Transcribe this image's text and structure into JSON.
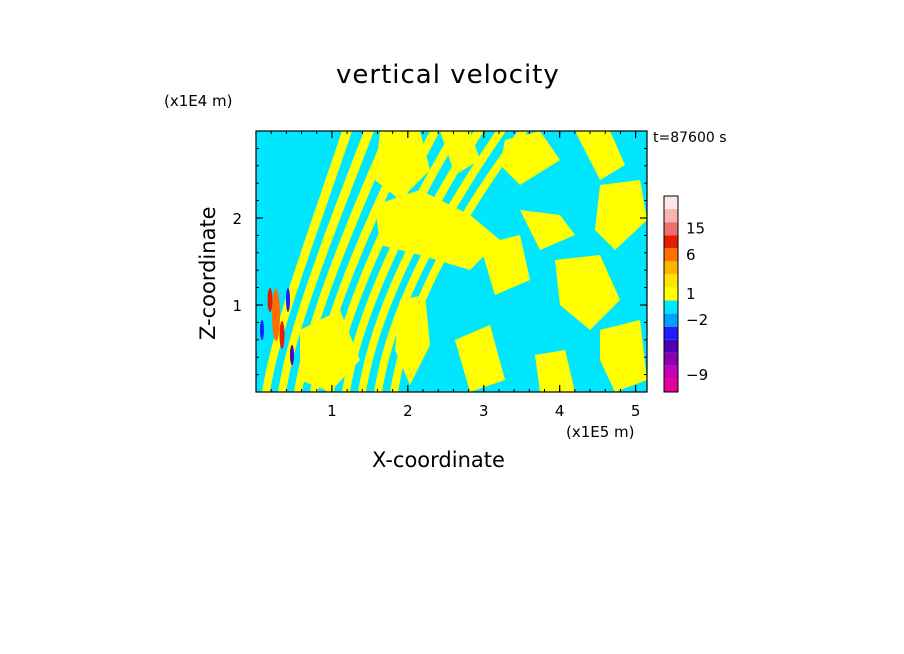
{
  "chart_data": {
    "type": "heatmap",
    "title": "vertical velocity",
    "xlabel": "X-coordinate",
    "ylabel": "Z-coordinate",
    "x_unit": "(x1E5 m)",
    "z_unit": "(x1E4 m)",
    "time_label": "t=87600 s",
    "xlim": [
      0,
      5.15
    ],
    "ylim": [
      0,
      3.0
    ],
    "x_ticks": [
      1,
      2,
      3,
      4,
      5
    ],
    "y_ticks": [
      1,
      2
    ],
    "colorbar": {
      "labels": [
        {
          "text": "15",
          "level": 15
        },
        {
          "text": "6",
          "level": 6
        },
        {
          "text": "1",
          "level": 1
        },
        {
          "text": "−2",
          "level": -2
        },
        {
          "text": "−9",
          "level": -9
        }
      ],
      "colors": [
        "#e60099",
        "#c800b4",
        "#8c00b4",
        "#4b00b4",
        "#1e1eff",
        "#00a0ff",
        "#00e6ff",
        "#ffff00",
        "#ffe600",
        "#ffb400",
        "#ff6e00",
        "#e61e00",
        "#f06e6e",
        "#f8b4b4",
        "#ffe6e6"
      ],
      "dominant_positive_color": "#ffff00",
      "dominant_negative_color": "#00e6ff"
    }
  }
}
